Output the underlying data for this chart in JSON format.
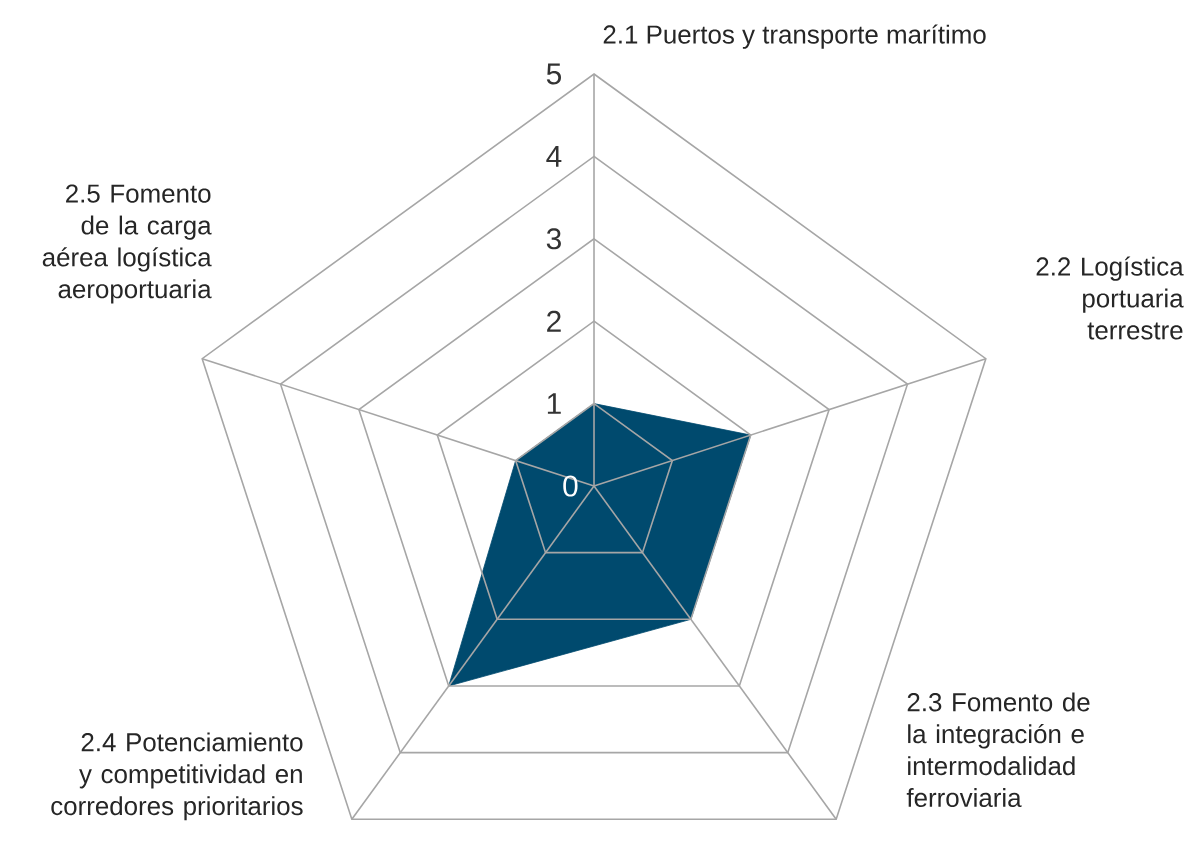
{
  "chart_data": {
    "type": "radar",
    "categories": [
      "2.1 Puertos y transporte marítimo",
      "2.2 Logística portuaria terrestre",
      "2.3 Fomento de la integración e intermodalidad ferroviaria",
      "2.4 Potenciamiento y competitividad en corredores prioritarios",
      "2.5 Fomento de la carga aérea logística aeroportuaria"
    ],
    "series": [
      {
        "color": "#004a6e",
        "values": [
          1,
          2,
          2,
          3,
          1
        ]
      }
    ],
    "ylim": [
      0,
      5
    ],
    "yticks": [
      0,
      1,
      2,
      3,
      4,
      5
    ],
    "grid": true
  }
}
